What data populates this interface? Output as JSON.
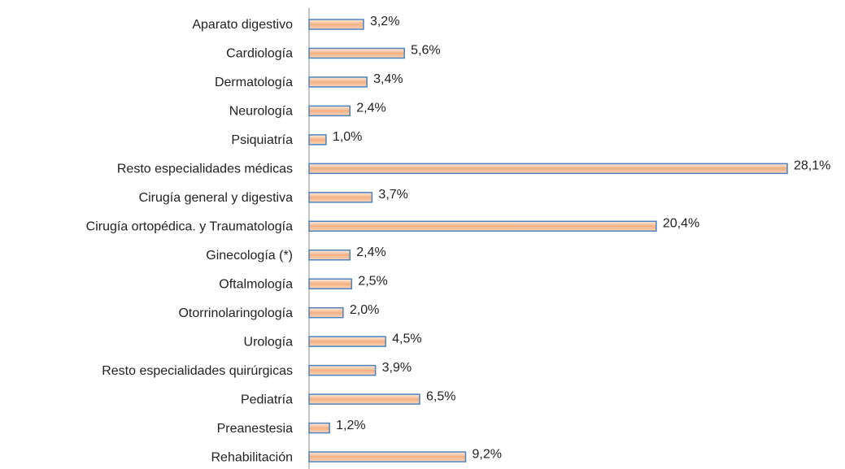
{
  "chart_data": {
    "type": "bar",
    "orientation": "horizontal",
    "categories": [
      "Aparato digestivo",
      "Cardiología",
      "Dermatología",
      "Neurología",
      "Psiquiatría",
      "Resto especialidades médicas",
      "Cirugía general y digestiva",
      "Cirugía ortopédica. y Traumatología",
      "Ginecología (*)",
      "Oftalmología",
      "Otorrinolaringología",
      "Urología",
      "Resto especialidades quirúrgicas",
      "Pediatría",
      "Preanestesia",
      "Rehabilitación"
    ],
    "values": [
      3.2,
      5.6,
      3.4,
      2.4,
      1.0,
      28.1,
      3.7,
      20.4,
      2.4,
      2.5,
      2.0,
      4.5,
      3.9,
      6.5,
      1.2,
      9.2
    ],
    "value_labels": [
      "3,2%",
      "5,6%",
      "3,4%",
      "2,4%",
      "1,0%",
      "28,1%",
      "3,7%",
      "20,4%",
      "2,4%",
      "2,5%",
      "2,0%",
      "4,5%",
      "3,9%",
      "6,5%",
      "1,2%",
      "9,2%"
    ],
    "color": "#f4b183"
  }
}
